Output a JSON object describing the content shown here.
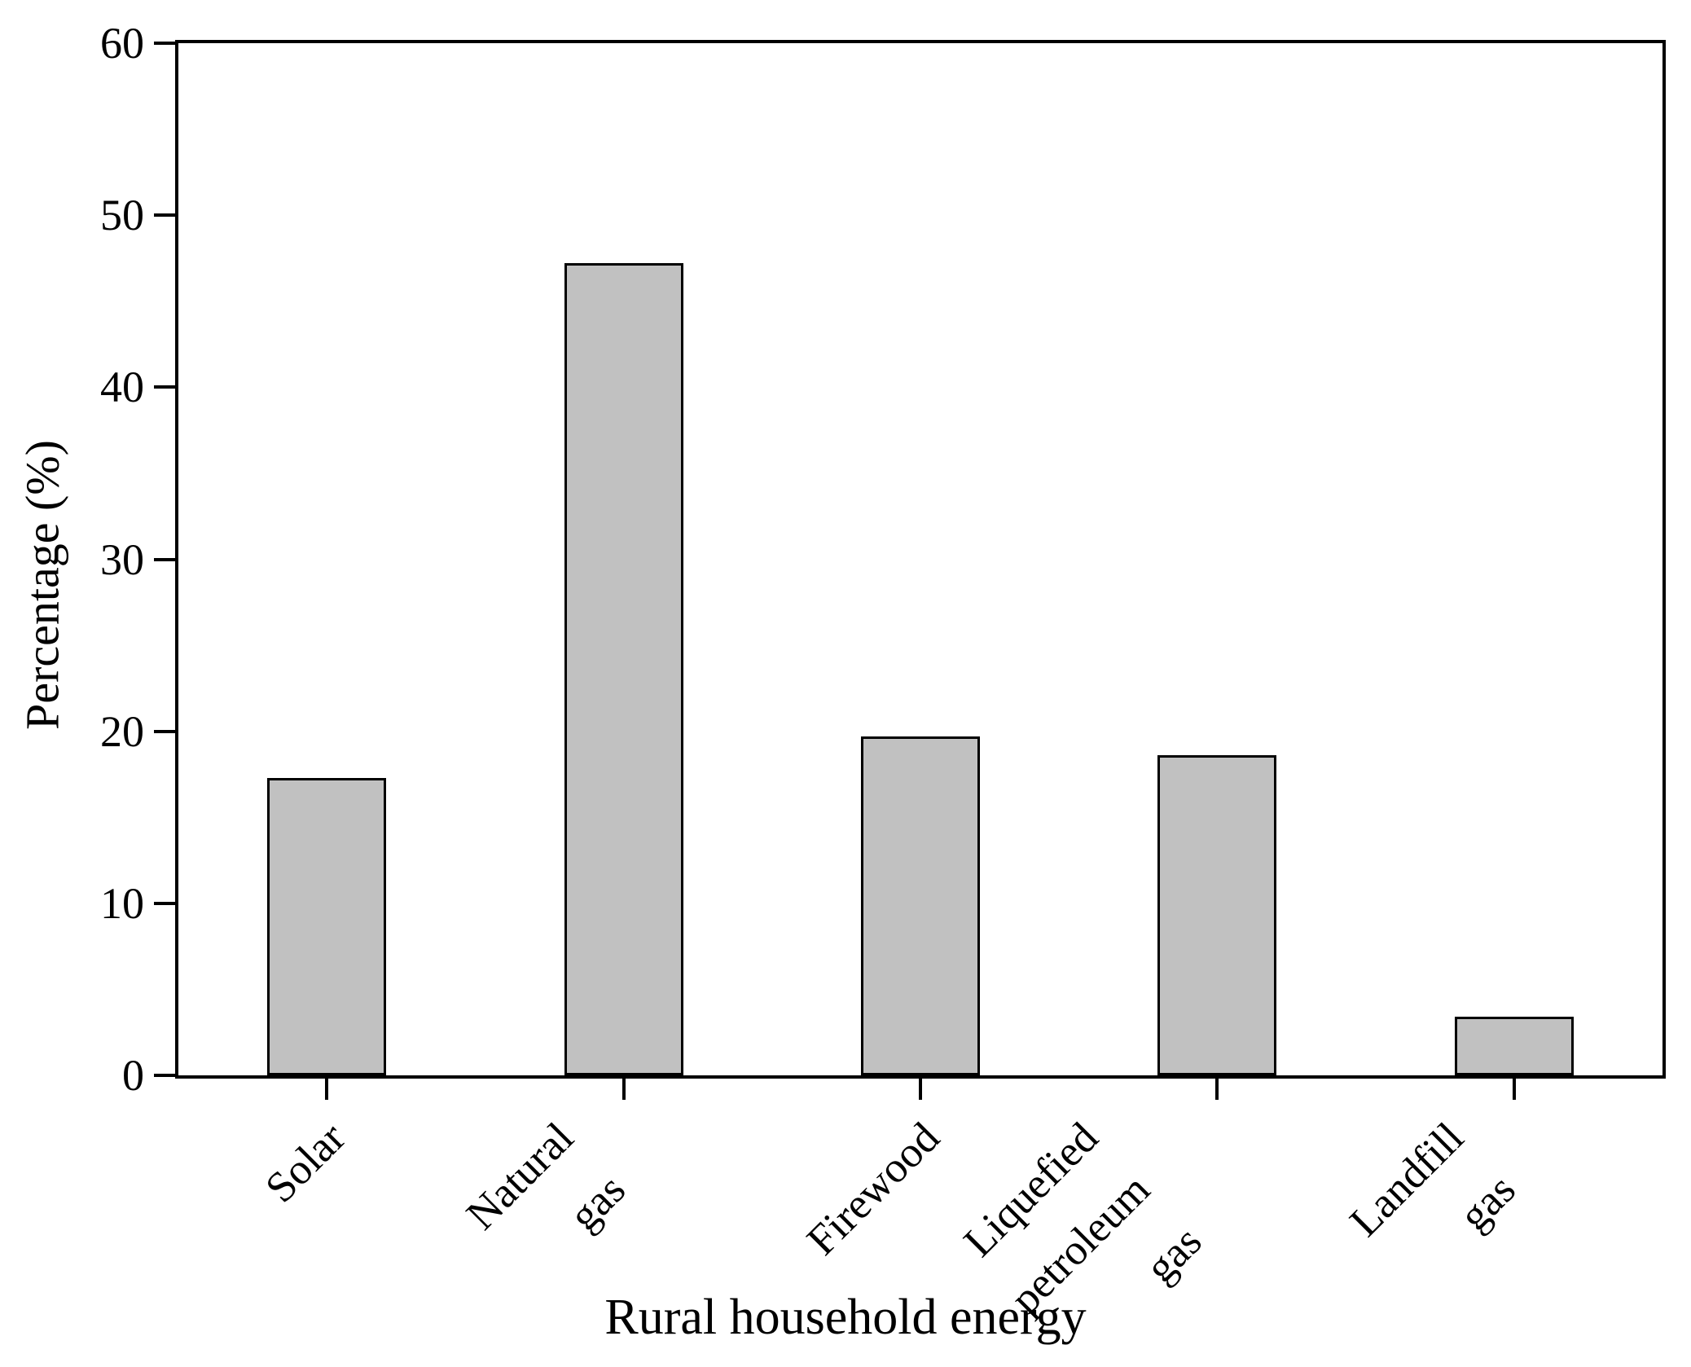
{
  "chart_data": {
    "type": "bar",
    "title": "",
    "xlabel": "Rural household energy",
    "ylabel": "Percentage (%)",
    "categories": [
      "Solar",
      "Natural gas",
      "Firewood",
      "Liquefied petroleum gas",
      "Landfill gas"
    ],
    "category_label_lines": [
      [
        "Solar"
      ],
      [
        "Natural",
        "gas"
      ],
      [
        "Firewood"
      ],
      [
        "Liquefied",
        "petroleum",
        "gas"
      ],
      [
        "Landfill",
        "gas"
      ]
    ],
    "values": [
      17.3,
      47.2,
      19.7,
      18.6,
      3.4
    ],
    "ylim": [
      0,
      60
    ],
    "yticks": [
      0,
      10,
      20,
      30,
      40,
      50,
      60
    ],
    "grid": false,
    "legend_position": "none",
    "tick_label_rotation_deg": 45,
    "bar_color": "#c1c1c1",
    "bar_border_color": "#000000",
    "axis_color": "#000000"
  }
}
